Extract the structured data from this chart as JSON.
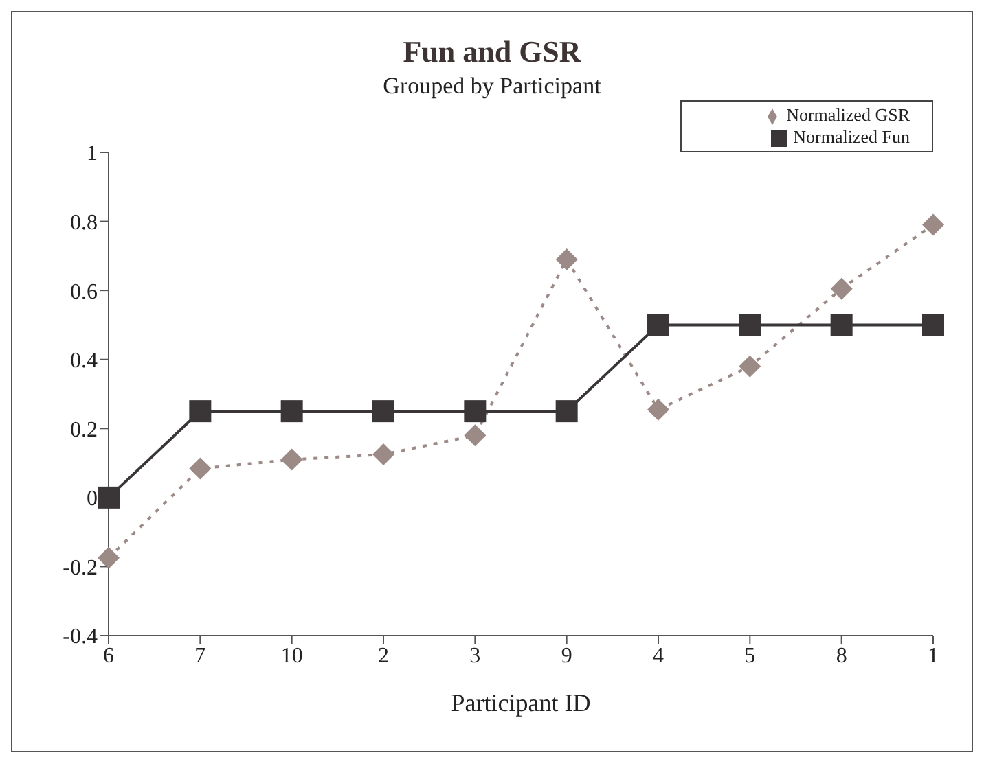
{
  "chart_data": {
    "type": "line",
    "title": "Fun and GSR",
    "subtitle": "Grouped by Participant",
    "xlabel": "Participant ID",
    "categories": [
      "6",
      "7",
      "10",
      "2",
      "3",
      "9",
      "4",
      "5",
      "8",
      "1"
    ],
    "series": [
      {
        "name": "Normalized GSR",
        "color": "#9c8a86",
        "marker": "diamond",
        "line_style": "dotted",
        "values": [
          -0.175,
          0.084,
          0.11,
          0.125,
          0.18,
          0.69,
          0.255,
          0.38,
          0.605,
          0.79
        ]
      },
      {
        "name": "Normalized Fun",
        "color": "#3a3638",
        "marker": "square",
        "line_style": "solid",
        "values": [
          0,
          0.25,
          0.25,
          0.25,
          0.25,
          0.25,
          0.5,
          0.5,
          0.5,
          0.5
        ]
      }
    ],
    "ylim": [
      -0.4,
      1
    ],
    "yticks": [
      -0.4,
      -0.2,
      0,
      0.2,
      0.4,
      0.6,
      0.8,
      1
    ],
    "legend": "top right"
  }
}
